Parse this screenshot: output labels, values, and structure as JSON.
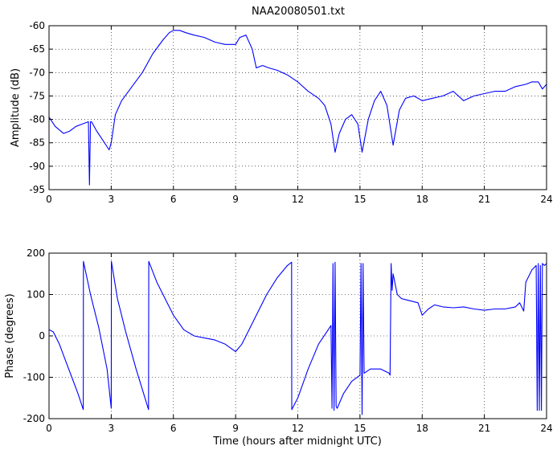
{
  "figure": {
    "title": "NAA20080501.txt"
  },
  "chart_data": [
    {
      "type": "line",
      "title": "NAA20080501.txt",
      "xlabel": "",
      "ylabel": "Amplitude (dB)",
      "xlim": [
        0,
        24
      ],
      "ylim": [
        -95,
        -60
      ],
      "xticks": [
        0,
        3,
        6,
        9,
        12,
        15,
        18,
        21,
        24
      ],
      "yticks": [
        -95,
        -90,
        -85,
        -80,
        -75,
        -70,
        -65,
        -60
      ],
      "grid": true,
      "series_color": "#0000ff",
      "series": [
        {
          "x": [
            0,
            0.3,
            0.7,
            1.0,
            1.3,
            1.6,
            1.9,
            1.95,
            2.0,
            2.05,
            2.3,
            2.6,
            2.9,
            3.0,
            3.2,
            3.5,
            4.0,
            4.5,
            5.0,
            5.5,
            5.8,
            6.0,
            6.3,
            6.6,
            7.0,
            7.5,
            8.0,
            8.5,
            9.0,
            9.2,
            9.5,
            9.8,
            10.0,
            10.3,
            10.6,
            11.0,
            11.5,
            12.0,
            12.5,
            13.0,
            13.3,
            13.6,
            13.8,
            14.0,
            14.3,
            14.6,
            14.9,
            15.1,
            15.4,
            15.7,
            16.0,
            16.3,
            16.6,
            16.9,
            17.2,
            17.6,
            18.0,
            18.5,
            19.0,
            19.5,
            20.0,
            20.5,
            21.0,
            21.5,
            22.0,
            22.5,
            23.0,
            23.3,
            23.6,
            23.8,
            24.0
          ],
          "y": [
            -79.5,
            -81.5,
            -83,
            -82.5,
            -81.5,
            -81,
            -80.5,
            -94,
            -80.5,
            -80.5,
            -82.5,
            -84.5,
            -86.5,
            -85,
            -79,
            -76,
            -73,
            -70,
            -66,
            -63,
            -61.5,
            -61,
            -61,
            -61.5,
            -62,
            -62.5,
            -63.5,
            -64,
            -64,
            -62.5,
            -62,
            -65,
            -69,
            -68.5,
            -69,
            -69.5,
            -70.5,
            -72,
            -74,
            -75.5,
            -77,
            -81,
            -87,
            -83,
            -80,
            -79,
            -81,
            -87,
            -80,
            -76,
            -74,
            -77,
            -85.5,
            -78,
            -75.5,
            -75,
            -76,
            -75.5,
            -75,
            -74,
            -76,
            -75,
            -74.5,
            -74,
            -74,
            -73,
            -72.5,
            -72,
            -72,
            -73.5,
            -72.5
          ]
        }
      ]
    },
    {
      "type": "line",
      "title": "",
      "xlabel": "Time (hours after midnight UTC)",
      "ylabel": "Phase (degrees)",
      "xlim": [
        0,
        24
      ],
      "ylim": [
        -200,
        200
      ],
      "xticks": [
        0,
        3,
        6,
        9,
        12,
        15,
        18,
        21,
        24
      ],
      "yticks": [
        -200,
        -100,
        0,
        100,
        200
      ],
      "grid": true,
      "series_color": "#0000ff",
      "series": [
        {
          "x": [
            0,
            0.2,
            0.5,
            0.8,
            1.1,
            1.4,
            1.65,
            1.66,
            2.0,
            2.4,
            2.8,
            3.0,
            3.01,
            3.3,
            3.7,
            4.2,
            4.8,
            4.81,
            5.2,
            5.6,
            6.0,
            6.5,
            7.0,
            7.5,
            8.0,
            8.5,
            9.0,
            9.3,
            9.7,
            10.0,
            10.5,
            11.0,
            11.5,
            11.7,
            11.71,
            12.0,
            12.5,
            13.0,
            13.4,
            13.6,
            13.65,
            13.7,
            13.75,
            13.8,
            13.85,
            13.9,
            14.2,
            14.6,
            15.0,
            15.05,
            15.1,
            15.15,
            15.2,
            15.5,
            16.0,
            16.4,
            16.45,
            16.5,
            16.55,
            16.6,
            16.8,
            17.0,
            17.4,
            17.8,
            18.0,
            18.3,
            18.6,
            19.0,
            19.5,
            20.0,
            20.5,
            21.0,
            21.5,
            22.0,
            22.5,
            22.7,
            22.9,
            23.0,
            23.3,
            23.5,
            23.55,
            23.6,
            23.65,
            23.7,
            23.75,
            23.8,
            23.9,
            24.0
          ],
          "y": [
            15,
            10,
            -20,
            -60,
            -100,
            -140,
            -178,
            180,
            100,
            20,
            -80,
            -175,
            180,
            90,
            10,
            -80,
            -178,
            180,
            130,
            90,
            50,
            15,
            0,
            -5,
            -10,
            -20,
            -38,
            -20,
            20,
            50,
            100,
            140,
            170,
            178,
            -178,
            -150,
            -80,
            -20,
            10,
            25,
            -175,
            175,
            -180,
            178,
            -170,
            -175,
            -140,
            -110,
            -95,
            175,
            -190,
            175,
            -90,
            -80,
            -80,
            -90,
            -95,
            175,
            110,
            150,
            100,
            90,
            85,
            80,
            50,
            65,
            75,
            70,
            68,
            70,
            65,
            62,
            65,
            65,
            70,
            80,
            60,
            130,
            160,
            170,
            -180,
            175,
            -180,
            170,
            -180,
            175,
            170,
            175
          ]
        }
      ]
    }
  ]
}
